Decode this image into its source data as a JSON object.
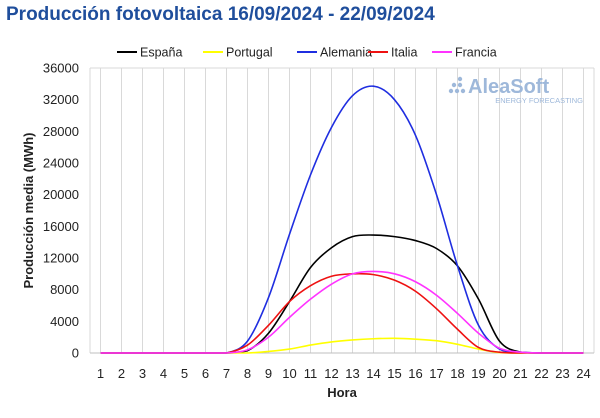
{
  "chart_data": {
    "type": "line",
    "title": "Producción fotovoltaica 16/09/2024 - 22/09/2024",
    "xlabel": "Hora",
    "ylabel": "Producción media (MWh)",
    "x": [
      1,
      2,
      3,
      4,
      5,
      6,
      7,
      8,
      9,
      10,
      11,
      12,
      13,
      14,
      15,
      16,
      17,
      18,
      19,
      20,
      21,
      22,
      23,
      24
    ],
    "xlim": [
      0.5,
      24.5
    ],
    "ylim": [
      0,
      36000
    ],
    "yticks": [
      0,
      4000,
      8000,
      12000,
      16000,
      20000,
      24000,
      28000,
      32000,
      36000
    ],
    "grid": "vertical",
    "legend_position": "top",
    "series": [
      {
        "name": "España",
        "color": "#000000",
        "values": [
          0,
          0,
          0,
          0,
          0,
          0,
          0,
          300,
          2500,
          6500,
          10800,
          13300,
          14700,
          14900,
          14700,
          14200,
          13200,
          11000,
          6800,
          1500,
          100,
          0,
          0,
          0
        ]
      },
      {
        "name": "Portugal",
        "color": "#ffff00",
        "values": [
          0,
          0,
          0,
          0,
          0,
          0,
          0,
          0,
          200,
          500,
          1000,
          1400,
          1650,
          1800,
          1850,
          1750,
          1550,
          1100,
          500,
          50,
          0,
          0,
          0,
          0
        ]
      },
      {
        "name": "Alemania",
        "color": "#1f2ee0",
        "values": [
          0,
          0,
          0,
          0,
          0,
          0,
          0,
          1500,
          7000,
          15000,
          22500,
          28500,
          32500,
          33700,
          32000,
          27500,
          20000,
          11000,
          3500,
          500,
          100,
          0,
          0,
          0
        ]
      },
      {
        "name": "Italia",
        "color": "#ee1111",
        "values": [
          0,
          0,
          0,
          0,
          0,
          0,
          0,
          1000,
          3500,
          6500,
          8500,
          9700,
          10000,
          9900,
          9200,
          7800,
          5600,
          3000,
          700,
          100,
          0,
          0,
          0,
          0
        ]
      },
      {
        "name": "Francia",
        "color": "#ff33ff",
        "values": [
          0,
          0,
          0,
          0,
          0,
          0,
          0,
          400,
          2000,
          4500,
          6800,
          8700,
          10000,
          10300,
          10000,
          9000,
          7300,
          5000,
          2500,
          600,
          100,
          0,
          0,
          0
        ]
      }
    ]
  },
  "watermark": {
    "brand": "AleaSoft",
    "tagline": "ENERGY FORECASTING",
    "color": "#9eb8da"
  }
}
